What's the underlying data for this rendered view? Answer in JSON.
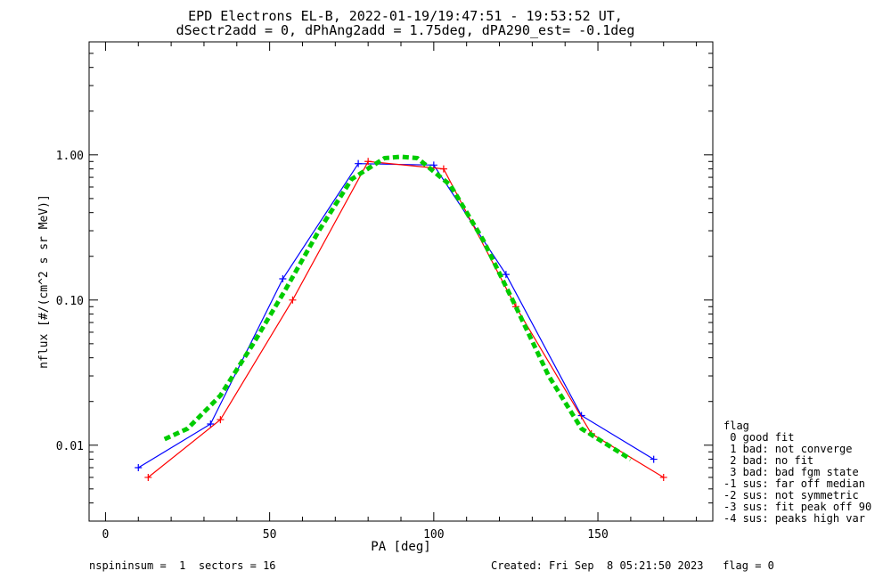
{
  "chart_data": {
    "type": "line",
    "title": "EPD Electrons EL-B, 2022-01-19/19:47:51 - 19:53:52 UT,",
    "subtitle": "dSectr2add = 0, dPhAng2add = 1.75deg, dPA290_est=  -0.1deg",
    "xlabel": "PA [deg]",
    "ylabel": "nflux [#/(cm^2 s sr MeV)]",
    "xlim": [
      -5,
      185
    ],
    "ylim": [
      0.003,
      6
    ],
    "yscale": "log",
    "xticks": [
      0,
      50,
      100,
      150
    ],
    "xtick_labels": [
      "0",
      "50",
      "100",
      "150"
    ],
    "yticks": [
      0.01,
      0.1,
      1.0
    ],
    "ytick_labels": [
      "0.01",
      "0.10",
      "1.00"
    ],
    "grid": false,
    "series": [
      {
        "color": "#0000ff",
        "marker": "plus",
        "x": [
          10,
          32,
          54,
          77,
          100,
          122,
          145,
          167
        ],
        "y": [
          0.007,
          0.014,
          0.14,
          0.87,
          0.85,
          0.15,
          0.016,
          0.008
        ]
      },
      {
        "color": "#ff0000",
        "marker": "plus",
        "x": [
          13,
          35,
          57,
          80,
          103,
          125,
          148,
          170
        ],
        "y": [
          0.006,
          0.015,
          0.1,
          0.9,
          0.8,
          0.09,
          0.012,
          0.006
        ]
      },
      {
        "color": "#00cc00",
        "style": "dashed",
        "x": [
          18,
          25,
          35,
          45,
          55,
          65,
          75,
          85,
          90,
          95,
          105,
          115,
          125,
          135,
          145,
          160
        ],
        "y": [
          0.011,
          0.013,
          0.022,
          0.05,
          0.12,
          0.3,
          0.68,
          0.95,
          0.97,
          0.95,
          0.62,
          0.26,
          0.09,
          0.03,
          0.013,
          0.008
        ]
      }
    ],
    "legend": {
      "position": "right",
      "title": "flag",
      "entries": [
        " 0 good fit",
        " 1 bad: not converge",
        " 2 bad: no fit",
        " 3 bad: bad fgm state",
        "-1 sus: far off median",
        "-2 sus: not symmetric",
        "-3 sus: fit peak off 90",
        "-4 sus: peaks high var"
      ]
    }
  },
  "footer": {
    "left": "nspininsum =  1  sectors = 16",
    "right": "Created: Fri Sep  8 05:21:50 2023   flag = 0"
  }
}
